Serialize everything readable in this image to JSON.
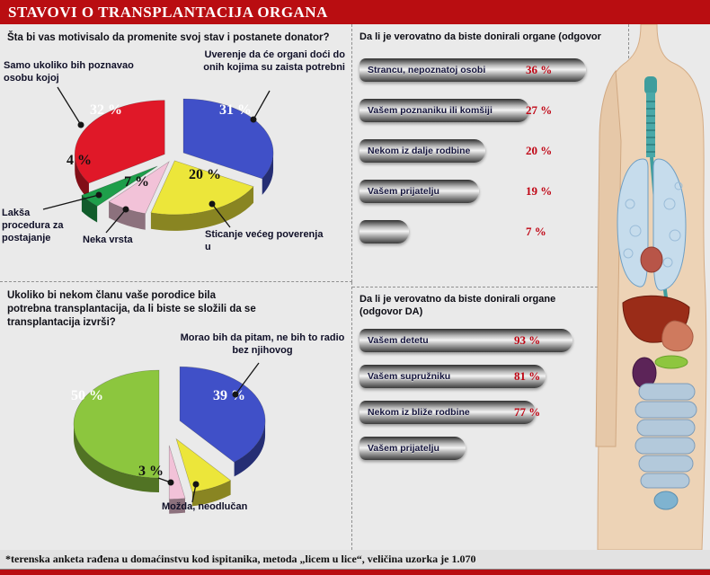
{
  "header": {
    "title": "STAVOVI O TRANSPLANTACIJA ORGANA"
  },
  "colors": {
    "banner": "#b90d11",
    "percent": "#c00514",
    "bar_label": "#14143c"
  },
  "chart_data": [
    {
      "type": "pie",
      "title": "Šta bi vas motivisalo da promenite svoj stav i postanete donator?",
      "slices": [
        {
          "label": "Uverenje da će organi doći do onih kojima su zaista potrebni",
          "value": 31,
          "display": "31 %",
          "color": "#4050c8"
        },
        {
          "label": "Sticanje većeg poverenja u",
          "value": 20,
          "display": "20 %",
          "color": "#ece63a"
        },
        {
          "label": "Neka vrsta",
          "value": 7,
          "display": "7 %",
          "color": "#f2c2d8"
        },
        {
          "label": "Lakša procedura za postajanje",
          "value": 4,
          "display": "4 %",
          "color": "#1e9e4a"
        },
        {
          "label": "Samo ukoliko bih poznavao osobu kojoj",
          "value": 32,
          "display": "32 %",
          "color": "#e01828"
        }
      ]
    },
    {
      "type": "pie",
      "title": "Ukoliko bi nekom članu vaše porodice bila potrebna transplantacija, da li biste se složili da se transplantacija izvrši?",
      "slices": [
        {
          "label": "Morao bih da pitam, ne bih to radio bez njihovog",
          "value": 39,
          "display": "39 %",
          "color": "#4050c8"
        },
        {
          "label": "Možda, neodlučan",
          "value": 8,
          "display": "",
          "color": "#ece63a"
        },
        {
          "label": "",
          "value": 3,
          "display": "3 %",
          "color": "#f2c2d8"
        },
        {
          "label": "",
          "value": 50,
          "display": "50 %",
          "color": "#8cc63e"
        }
      ]
    },
    {
      "type": "bar",
      "title": "Da li je verovatno da biste donirali organe (odgovor",
      "bars": [
        {
          "label": "Strancu, nepoznatoj osobi",
          "value": 36,
          "display": "36 %"
        },
        {
          "label": "Vašem poznaniku ili komšiji",
          "value": 27,
          "display": "27 %"
        },
        {
          "label": "Nekom iz dalje rodbine",
          "value": 20,
          "display": "20 %"
        },
        {
          "label": "Vašem prijatelju",
          "value": 19,
          "display": "19 %"
        },
        {
          "label": "",
          "value": 7,
          "display": "7 %"
        }
      ]
    },
    {
      "type": "bar",
      "title": "Da li je verovatno da biste donirali organe (odgovor DA)",
      "bars": [
        {
          "label": "Vašem detetu",
          "value": 93,
          "display": "93 %"
        },
        {
          "label": "Vašem supružniku",
          "value": 81,
          "display": "81 %"
        },
        {
          "label": "Nekom iz bliže rodbine",
          "value": 77,
          "display": "77 %"
        },
        {
          "label": "Vašem prijatelju",
          "value": null,
          "display": ""
        }
      ]
    }
  ],
  "footer": {
    "note": "*terenska anketa rađena u domaćinstvu kod ispitanika, metoda „licem u lice“, veličina uzorka je 1.070"
  }
}
